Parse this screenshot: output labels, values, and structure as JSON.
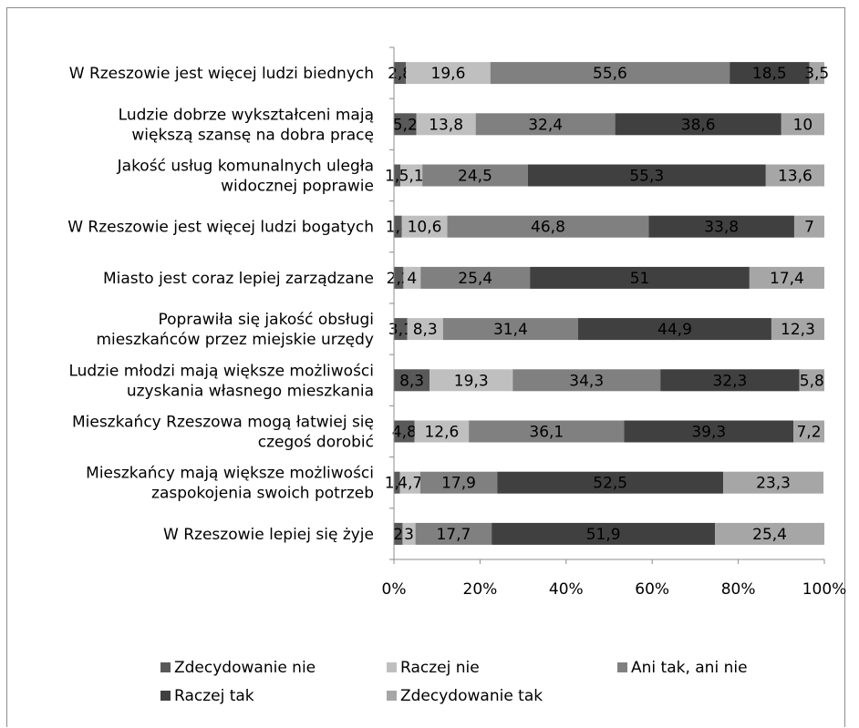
{
  "chart_data": {
    "type": "bar",
    "orientation": "horizontal",
    "stacked": "percent",
    "categories": [
      "W Rzeszowie jest więcej ludzi biednych",
      "Ludzie dobrze wykształceni mają|większą szansę na dobra pracę",
      "Jakość usług komunalnych uległa|widocznej poprawie",
      "W Rzeszowie jest więcej ludzi bogatych",
      "Miasto jest coraz lepiej zarządzane",
      "Poprawiła się jakość obsługi|mieszkańców przez miejskie urzędy",
      "Ludzie młodzi mają większe możliwości|uzyskania własnego mieszkania",
      "Mieszkańcy Rzeszowa mogą łatwiej się|czegoś dorobić",
      "Mieszkańcy mają większe możliwości|zaspokojenia swoich potrzeb",
      "W Rzeszowie lepiej się żyje"
    ],
    "series": [
      {
        "name": "Zdecydowanie nie",
        "color": "#595959",
        "values": [
          2.8,
          5.2,
          1.5,
          1.8,
          2.2,
          3.1,
          8.3,
          4.8,
          1.4,
          2
        ]
      },
      {
        "name": "Raczej nie",
        "color": "#bfbfbf",
        "values": [
          19.6,
          13.8,
          5.1,
          10.6,
          4,
          8.3,
          19.3,
          12.6,
          4.7,
          3
        ]
      },
      {
        "name": "Ani tak, ani nie",
        "color": "#808080",
        "values": [
          55.6,
          32.4,
          24.5,
          46.8,
          25.4,
          31.4,
          34.3,
          36.1,
          17.9,
          17.7
        ]
      },
      {
        "name": "Raczej tak",
        "color": "#404040",
        "values": [
          18.5,
          38.6,
          55.3,
          33.8,
          51,
          44.9,
          32.3,
          39.3,
          52.5,
          51.9
        ]
      },
      {
        "name": "Zdecydowanie tak",
        "color": "#a6a6a6",
        "values": [
          3.5,
          10,
          13.6,
          7,
          17.4,
          12.3,
          5.8,
          7.2,
          23.3,
          25.4
        ]
      }
    ],
    "data_labels": [
      [
        "2,8",
        "19,6",
        "55,6",
        "18,5",
        "3,5"
      ],
      [
        "5,2",
        "13,8",
        "32,4",
        "38,6",
        "10"
      ],
      [
        "1,5",
        "5,1",
        "24,5",
        "55,3",
        "13,6"
      ],
      [
        "1,8",
        "10,6",
        "46,8",
        "33,8",
        "7"
      ],
      [
        "2,2",
        "4",
        "25,4",
        "51",
        "17,4"
      ],
      [
        "3,1",
        "8,3",
        "31,4",
        "44,9",
        "12,3"
      ],
      [
        "8,3",
        "19,3",
        "34,3",
        "32,3",
        "5,8"
      ],
      [
        "4,8",
        "12,6",
        "36,1",
        "39,3",
        "7,2"
      ],
      [
        "1,4",
        "4,7",
        "17,9",
        "52,5",
        "23,3"
      ],
      [
        "2",
        "3",
        "17,7",
        "51,9",
        "25,4"
      ]
    ],
    "x_ticks": [
      "0%",
      "20%",
      "40%",
      "60%",
      "80%",
      "100%"
    ],
    "xlim": [
      0,
      100
    ],
    "grid": false,
    "legend_position": "bottom"
  }
}
